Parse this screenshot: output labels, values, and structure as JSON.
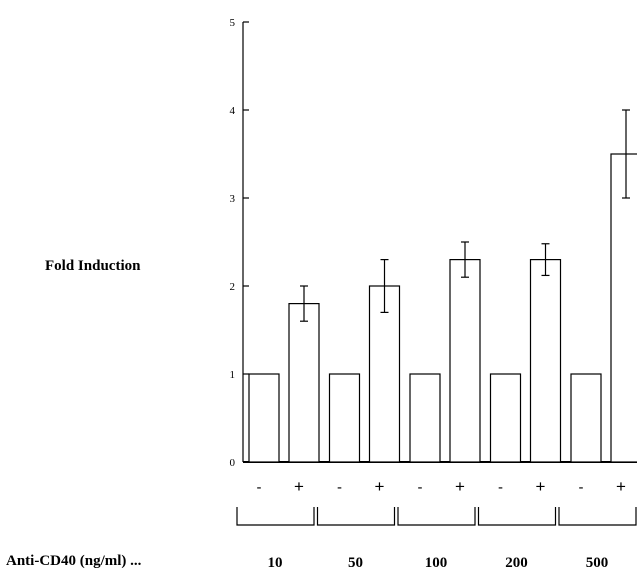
{
  "chart_data": {
    "type": "bar",
    "ylabel": "Fold Induction",
    "xlabel": "Anti-CD40 (ng/ml) ...",
    "ylim": [
      0,
      5
    ],
    "yticks": [
      "0",
      "1",
      "2",
      "3",
      "4",
      "5"
    ],
    "groups": [
      {
        "label": "10",
        "minus": 1.0,
        "plus": 1.8,
        "plus_err": 0.2
      },
      {
        "label": "50",
        "minus": 1.0,
        "plus": 2.0,
        "plus_err": 0.3
      },
      {
        "label": "100",
        "minus": 1.0,
        "plus": 2.3,
        "plus_err": 0.2
      },
      {
        "label": "200",
        "minus": 1.0,
        "plus": 2.3,
        "plus_err": 0.18
      },
      {
        "label": "500",
        "minus": 1.0,
        "plus": 3.5,
        "plus_err": 0.5
      }
    ],
    "condition_labels": {
      "minus": "-",
      "plus": "+"
    },
    "colors": {
      "bar_fill": "#ffffff",
      "bar_stroke": "#000000"
    }
  }
}
